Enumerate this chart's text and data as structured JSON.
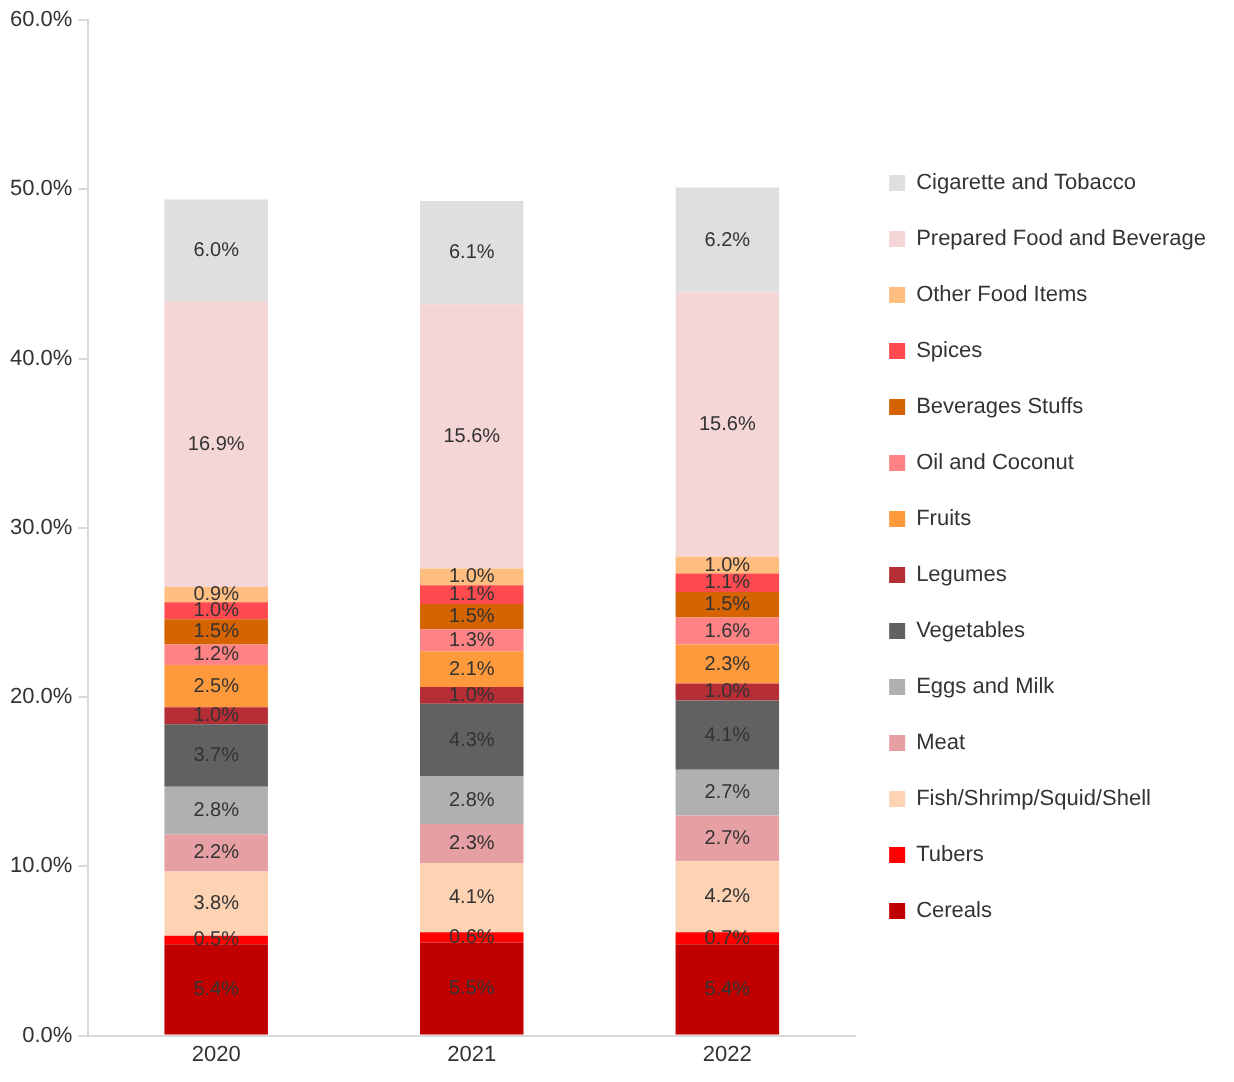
{
  "chart_data": {
    "type": "bar",
    "stacked": true,
    "categories": [
      "2020",
      "2021",
      "2022"
    ],
    "ylim": [
      0,
      60
    ],
    "yticks": [
      {
        "value": 0,
        "label": "0.0%"
      },
      {
        "value": 10,
        "label": "10.0%"
      },
      {
        "value": 20,
        "label": "20.0%"
      },
      {
        "value": 30,
        "label": "30.0%"
      },
      {
        "value": 40,
        "label": "40.0%"
      },
      {
        "value": 50,
        "label": "50.0%"
      },
      {
        "value": 60,
        "label": "60.0%"
      }
    ],
    "grid": false,
    "legend": "right",
    "series": [
      {
        "name": "Cereals",
        "color": "#c00000",
        "values": [
          5.4,
          5.5,
          5.4
        ],
        "value_labels": [
          "5.4%",
          "5.5%",
          "5.4%"
        ]
      },
      {
        "name": "Tubers",
        "color": "#ff0000",
        "values": [
          0.5,
          0.6,
          0.7
        ],
        "value_labels": [
          "0.5%",
          "0.6%",
          "0.7%"
        ]
      },
      {
        "name": "Fish/Shrimp/Squid/Shell",
        "color": "#fdd3b4",
        "values": [
          3.8,
          4.1,
          4.2
        ],
        "value_labels": [
          "3.8%",
          "4.1%",
          "4.2%"
        ]
      },
      {
        "name": "Meat",
        "color": "#e6a0a4",
        "values": [
          2.2,
          2.3,
          2.7
        ],
        "value_labels": [
          "2.2%",
          "2.3%",
          "2.7%"
        ]
      },
      {
        "name": "Eggs and Milk",
        "color": "#b0b0b0",
        "values": [
          2.8,
          2.8,
          2.7
        ],
        "value_labels": [
          "2.8%",
          "2.8%",
          "2.7%"
        ]
      },
      {
        "name": "Vegetables",
        "color": "#616161",
        "values": [
          3.7,
          4.3,
          4.1
        ],
        "value_labels": [
          "3.7%",
          "4.3%",
          "4.1%"
        ]
      },
      {
        "name": "Legumes",
        "color": "#b52d35",
        "values": [
          1.0,
          1.0,
          1.0
        ],
        "value_labels": [
          "1.0%",
          "1.0%",
          "1.0%"
        ]
      },
      {
        "name": "Fruits",
        "color": "#ff9a3c",
        "values": [
          2.5,
          2.1,
          2.3
        ],
        "value_labels": [
          "2.5%",
          "2.1%",
          "2.3%"
        ]
      },
      {
        "name": "Oil and Coconut",
        "color": "#ff8284",
        "values": [
          1.2,
          1.3,
          1.6
        ],
        "value_labels": [
          "1.2%",
          "1.3%",
          "1.6%"
        ]
      },
      {
        "name": "Beverages Stuffs",
        "color": "#d46300",
        "values": [
          1.5,
          1.5,
          1.5
        ],
        "value_labels": [
          "1.5%",
          "1.5%",
          "1.5%"
        ]
      },
      {
        "name": "Spices",
        "color": "#ff4b4f",
        "values": [
          1.0,
          1.1,
          1.1
        ],
        "value_labels": [
          "1.0%",
          "1.1%",
          "1.1%"
        ]
      },
      {
        "name": "Other Food Items",
        "color": "#ffbd80",
        "values": [
          0.9,
          1.0,
          1.0
        ],
        "value_labels": [
          "0.9%",
          "1.0%",
          "1.0%"
        ]
      },
      {
        "name": "Prepared Food and Beverage",
        "color": "#f5d6d7",
        "values": [
          16.9,
          15.6,
          15.6
        ],
        "value_labels": [
          "16.9%",
          "15.6%",
          "15.6%"
        ]
      },
      {
        "name": "Cigarette and Tobacco",
        "color": "#dfdfdf",
        "values": [
          6.0,
          6.1,
          6.2
        ],
        "value_labels": [
          "6.0%",
          "6.1%",
          "6.2%"
        ]
      }
    ]
  }
}
